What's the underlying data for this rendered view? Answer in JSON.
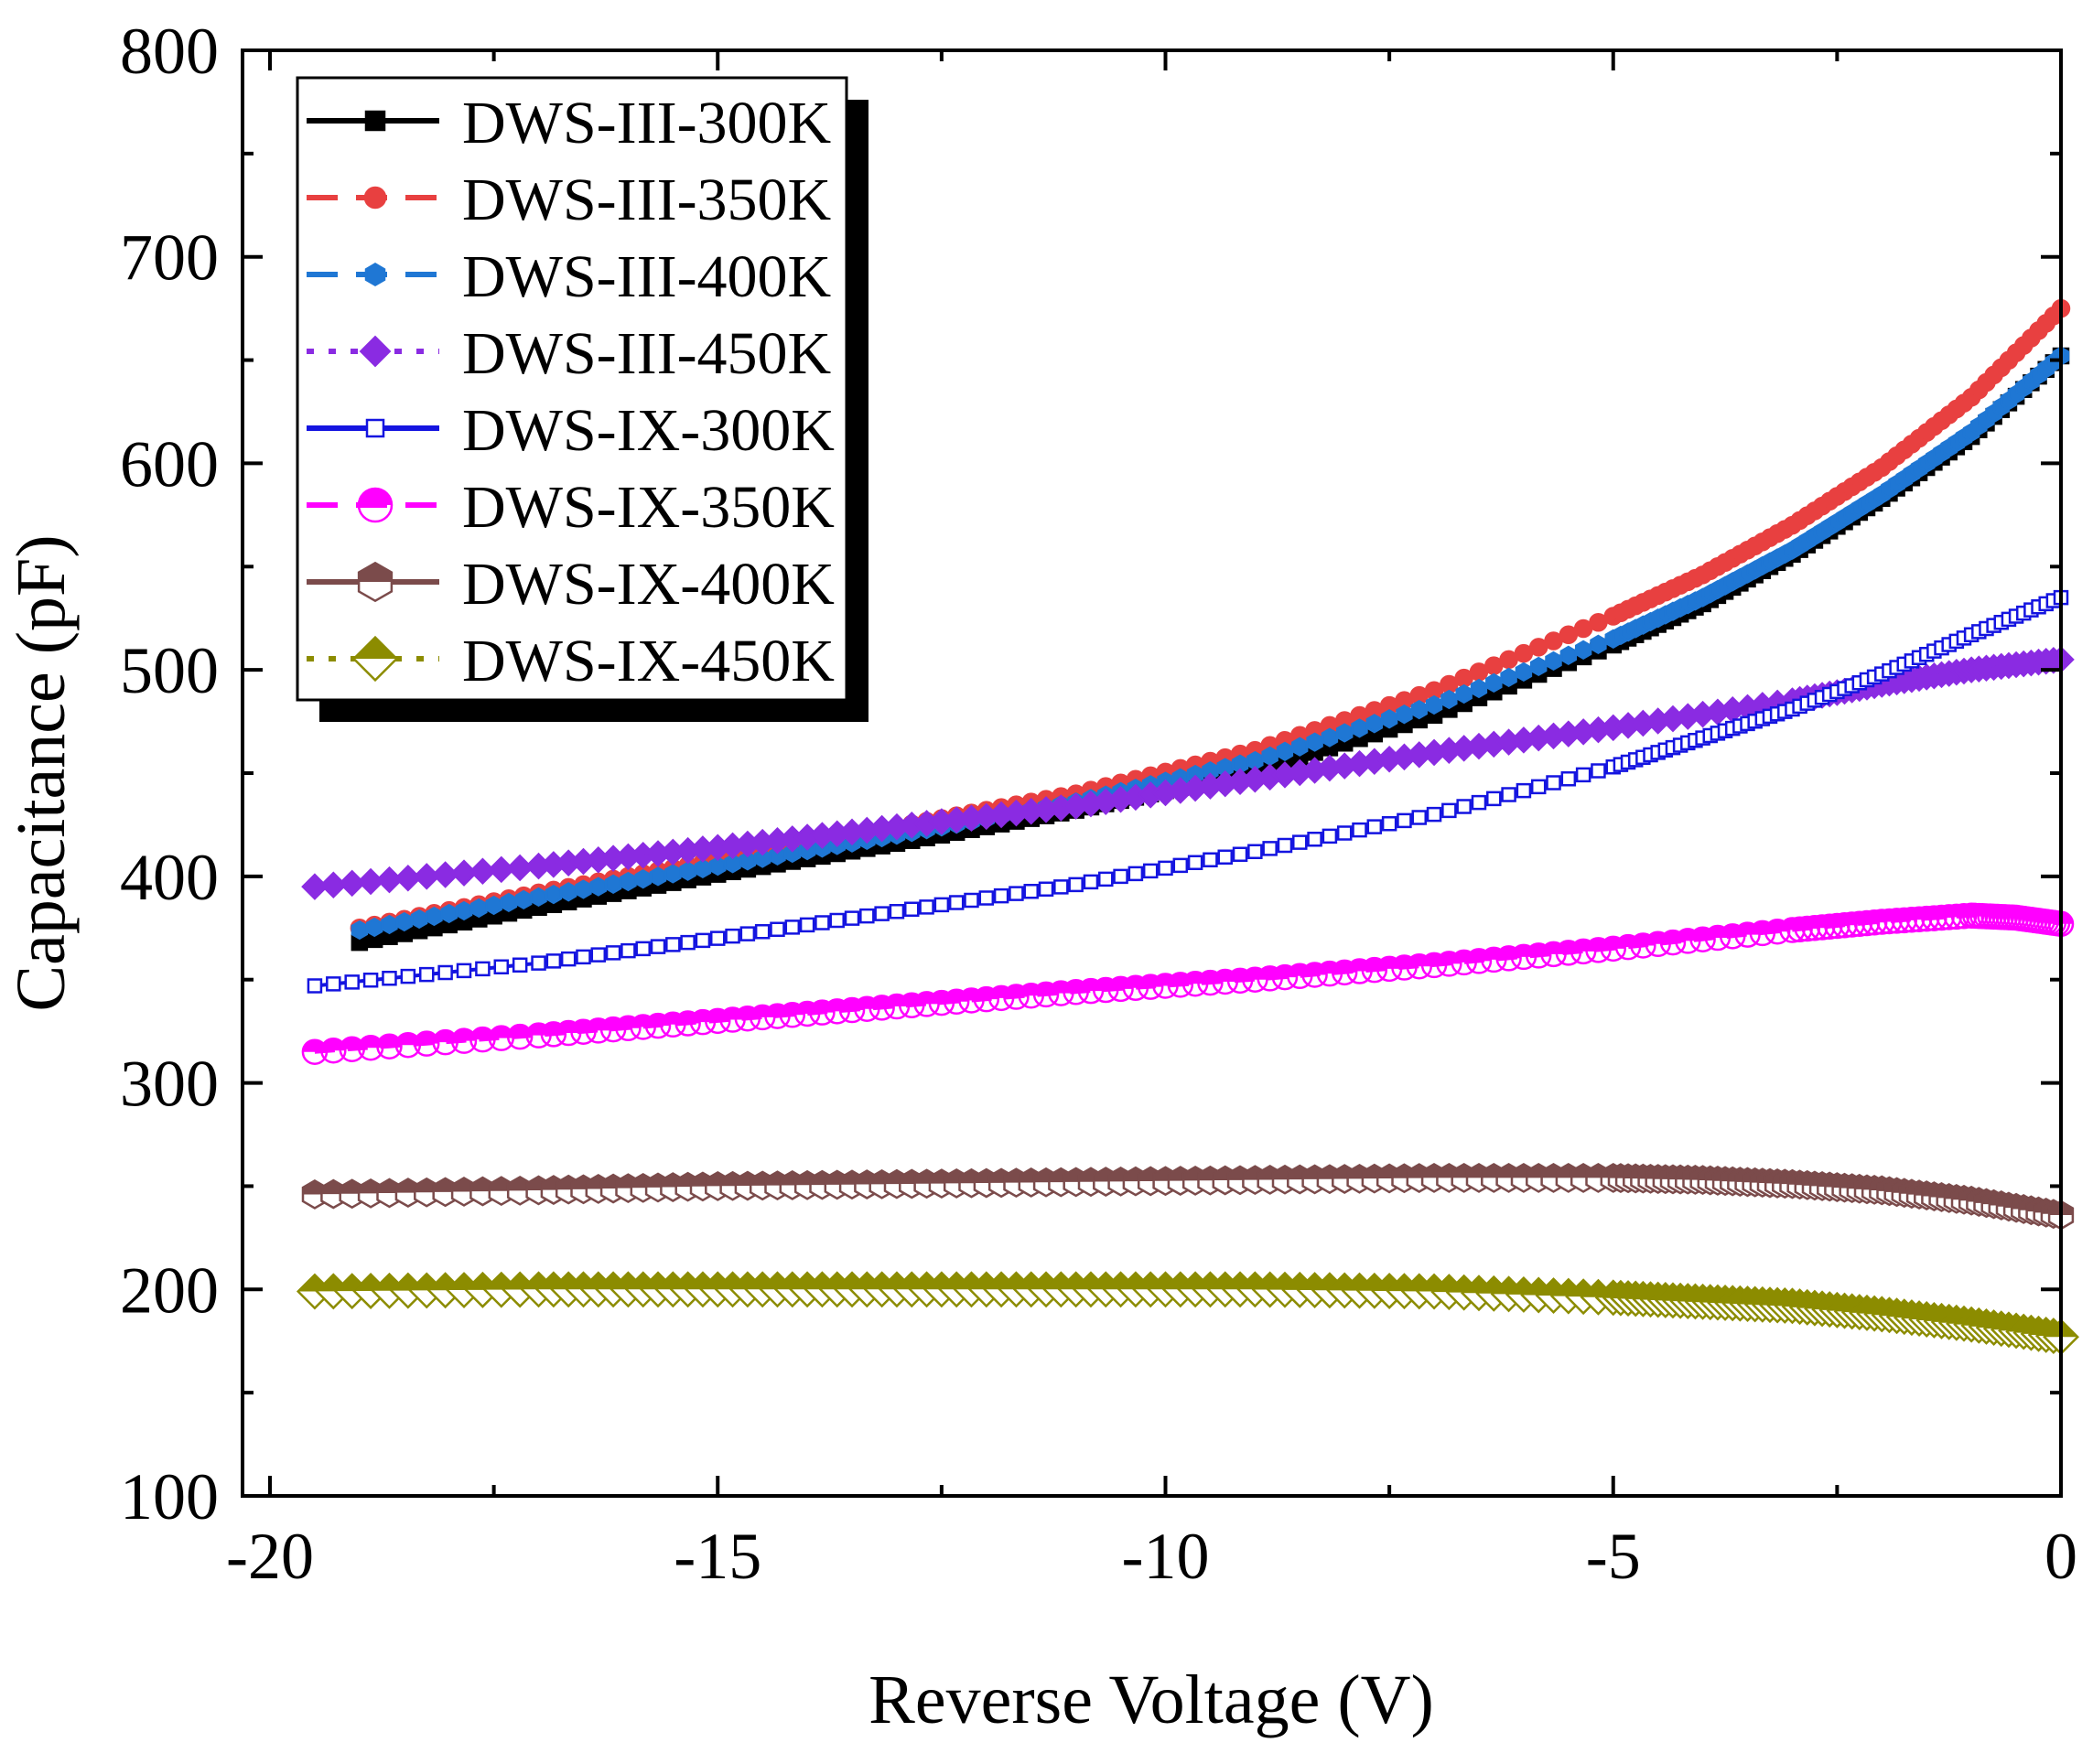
{
  "chart_data": {
    "type": "scatter",
    "title": "",
    "xlabel": "Reverse Voltage (V)",
    "ylabel": "Capacitance (pF)",
    "xlim": [
      -20,
      0
    ],
    "ylim": [
      100,
      800
    ],
    "xticks": [
      -20,
      -15,
      -10,
      -5,
      0
    ],
    "xtick_labels": [
      "-20",
      "-15",
      "-10",
      "-5",
      "0"
    ],
    "yticks": [
      100,
      200,
      300,
      400,
      500,
      600,
      700,
      800
    ],
    "ytick_labels": [
      "100",
      "200",
      "300",
      "400",
      "500",
      "600",
      "700",
      "800"
    ],
    "grid": false,
    "legend_position": "top-left",
    "series": [
      {
        "name": "DWS-III-300K",
        "color": "#000000",
        "marker": "square-filled",
        "line": "solid",
        "x": [
          -19,
          -17,
          -15,
          -13,
          -11,
          -9,
          -7,
          -5,
          -4,
          -3,
          -2,
          -1,
          0
        ],
        "y": [
          368,
          385,
          401,
          416,
          432,
          451,
          478,
          512,
          532,
          556,
          583,
          613,
          652
        ]
      },
      {
        "name": "DWS-III-350K",
        "color": "#e84040",
        "marker": "circle-filled",
        "line": "dash",
        "x": [
          -19,
          -17,
          -15,
          -13,
          -11,
          -9,
          -7,
          -5,
          -4,
          -3,
          -2,
          -1,
          0
        ],
        "y": [
          375,
          392,
          408,
          424,
          440,
          461,
          490,
          526,
          546,
          570,
          598,
          632,
          675
        ]
      },
      {
        "name": "DWS-III-400K",
        "color": "#1f77d4",
        "marker": "hexagon-filled",
        "line": "dash",
        "x": [
          -19,
          -17,
          -15,
          -13,
          -11,
          -9,
          -7,
          -5,
          -4,
          -3,
          -2,
          -1,
          0
        ],
        "y": [
          374,
          390,
          405,
          420,
          436,
          456,
          483,
          515,
          535,
          558,
          585,
          615,
          652
        ]
      },
      {
        "name": "DWS-III-450K",
        "color": "#8a2be2",
        "marker": "diamond-filled",
        "line": "dot",
        "x": [
          -19.5,
          -17,
          -15,
          -13,
          -11,
          -9,
          -7,
          -5,
          -3,
          -2,
          -1,
          0
        ],
        "y": [
          395,
          405,
          414,
          424,
          434,
          447,
          460,
          472,
          485,
          493,
          500,
          505
        ]
      },
      {
        "name": "DWS-IX-300K",
        "color": "#1414e0",
        "marker": "square-open",
        "line": "solid",
        "x": [
          -19.5,
          -17,
          -15,
          -13,
          -11,
          -9,
          -7,
          -5,
          -4,
          -3,
          -2,
          -1,
          0
        ],
        "y": [
          347,
          358,
          370,
          383,
          396,
          412,
          430,
          453,
          467,
          481,
          498,
          517,
          535
        ]
      },
      {
        "name": "DWS-IX-350K",
        "color": "#ff00ff",
        "marker": "circle-half",
        "line": "dash",
        "x": [
          -19.5,
          -17,
          -15,
          -13,
          -11,
          -9,
          -7,
          -5,
          -3,
          -2,
          -1,
          -0.5,
          0
        ],
        "y": [
          315,
          323,
          330,
          337,
          344,
          350,
          357,
          365,
          374,
          378,
          381,
          380,
          377
        ]
      },
      {
        "name": "DWS-IX-400K",
        "color": "#7b4b4b",
        "marker": "hexagon-half",
        "line": "solid",
        "x": [
          -19.5,
          -17,
          -15,
          -13,
          -11,
          -9,
          -7,
          -5,
          -4,
          -3,
          -2,
          -1,
          0
        ],
        "y": [
          246,
          248,
          250,
          251,
          252,
          253,
          254,
          254,
          253,
          251,
          248,
          243,
          236
        ]
      },
      {
        "name": "DWS-IX-450K",
        "color": "#8c8c00",
        "marker": "diamond-half",
        "line": "dot",
        "x": [
          -19.5,
          -17,
          -15,
          -13,
          -11,
          -9,
          -7,
          -5,
          -4,
          -3,
          -2,
          -1,
          0
        ],
        "y": [
          199,
          200,
          200,
          200,
          200,
          200,
          199,
          196,
          194,
          192,
          188,
          183,
          177
        ]
      }
    ]
  }
}
